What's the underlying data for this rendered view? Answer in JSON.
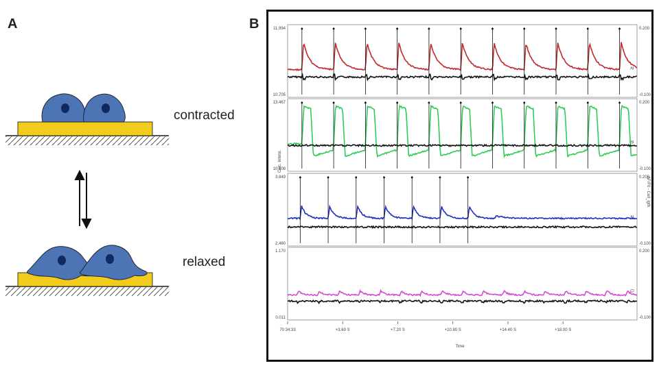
{
  "panel_a": {
    "letter": "A",
    "contracted_label": "contracted",
    "relaxed_label": "relaxed",
    "arrows_icon": "reversible-arrows-icon"
  },
  "panel_b": {
    "letter": "B",
    "x_axis_label": "Time",
    "x_ticks": [
      "70:34:33",
      "+3.60 S",
      "+7.20 S",
      "+10.80 S",
      "+14.40 S",
      "+18.00 S"
    ],
    "left_axis_label": "Calc. Intens.",
    "right_axis_label": "ΔF/F0 - Cell_lgth",
    "rows": [
      {
        "left_top": "11.994",
        "left_bottom": "10.705",
        "right_top": "0.200",
        "right_bottom": "-0.100",
        "marker": "Al",
        "trace_color": "#c0282a",
        "pattern": "decay",
        "beats": 11
      },
      {
        "left_top": "13.467",
        "left_bottom": "10.108",
        "right_top": "0.200",
        "right_bottom": "-0.100",
        "marker": "Bl",
        "trace_color": "#2ecc55",
        "pattern": "flat-top",
        "beats": 11
      },
      {
        "left_top": "3.849",
        "left_bottom": "2.480",
        "right_top": "0.200",
        "right_bottom": "-0.100",
        "marker": "Al",
        "trace_color": "#1f2fbf",
        "pattern": "stop",
        "beats": 7
      },
      {
        "left_top": "1.170",
        "left_bottom": "0.011",
        "right_top": "0.200",
        "right_bottom": "-0.100",
        "marker": "Cl",
        "trace_color": "#d34bd3",
        "pattern": "small",
        "beats": 17
      }
    ]
  }
}
